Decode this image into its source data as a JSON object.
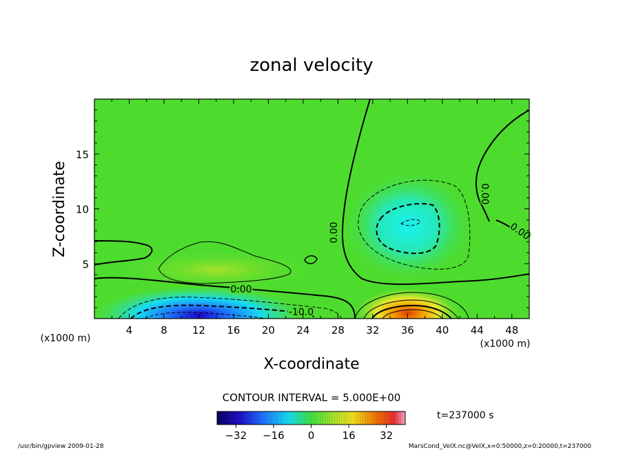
{
  "chart_data": {
    "type": "heatmap",
    "title": "zonal velocity",
    "xlabel": "X-coordinate",
    "ylabel": "Z-coordinate",
    "x_unit_left": "(x1000 m)",
    "x_unit_right": "(x1000 m)",
    "xlim": [
      0,
      50
    ],
    "ylim": [
      0,
      20
    ],
    "x_ticks": [
      4,
      8,
      12,
      16,
      20,
      24,
      28,
      32,
      36,
      40,
      44,
      48
    ],
    "y_ticks": [
      5,
      10,
      15
    ],
    "contour_interval": "CONTOUR INTERVAL = 5.000E+00",
    "contour_labels": [
      "0.00",
      "0.00",
      "0.00",
      "0.00",
      "-10.0"
    ],
    "time_label": "t=237000 s",
    "colorbar": {
      "range": [
        -40,
        40
      ],
      "ticks": [
        -32,
        -16,
        0,
        16,
        32
      ]
    },
    "features": [
      {
        "kind": "negative jet",
        "x": 12,
        "z": 0.3,
        "value": -35
      },
      {
        "kind": "positive jet",
        "x": 36,
        "z": 0.5,
        "value": 25
      },
      {
        "kind": "negative cell",
        "x": 36,
        "z": 8.5,
        "value": -15
      }
    ]
  },
  "footer": {
    "left": "/usr/bin/gpview  2009-01-28",
    "right": "MarsCond_VelX.nc@VelX,x=0:50000,z=0:20000,t=237000"
  },
  "colors": {
    "background_field": "#4ddc2e",
    "negative": "#1a00c8",
    "positive": "#e03c00"
  }
}
